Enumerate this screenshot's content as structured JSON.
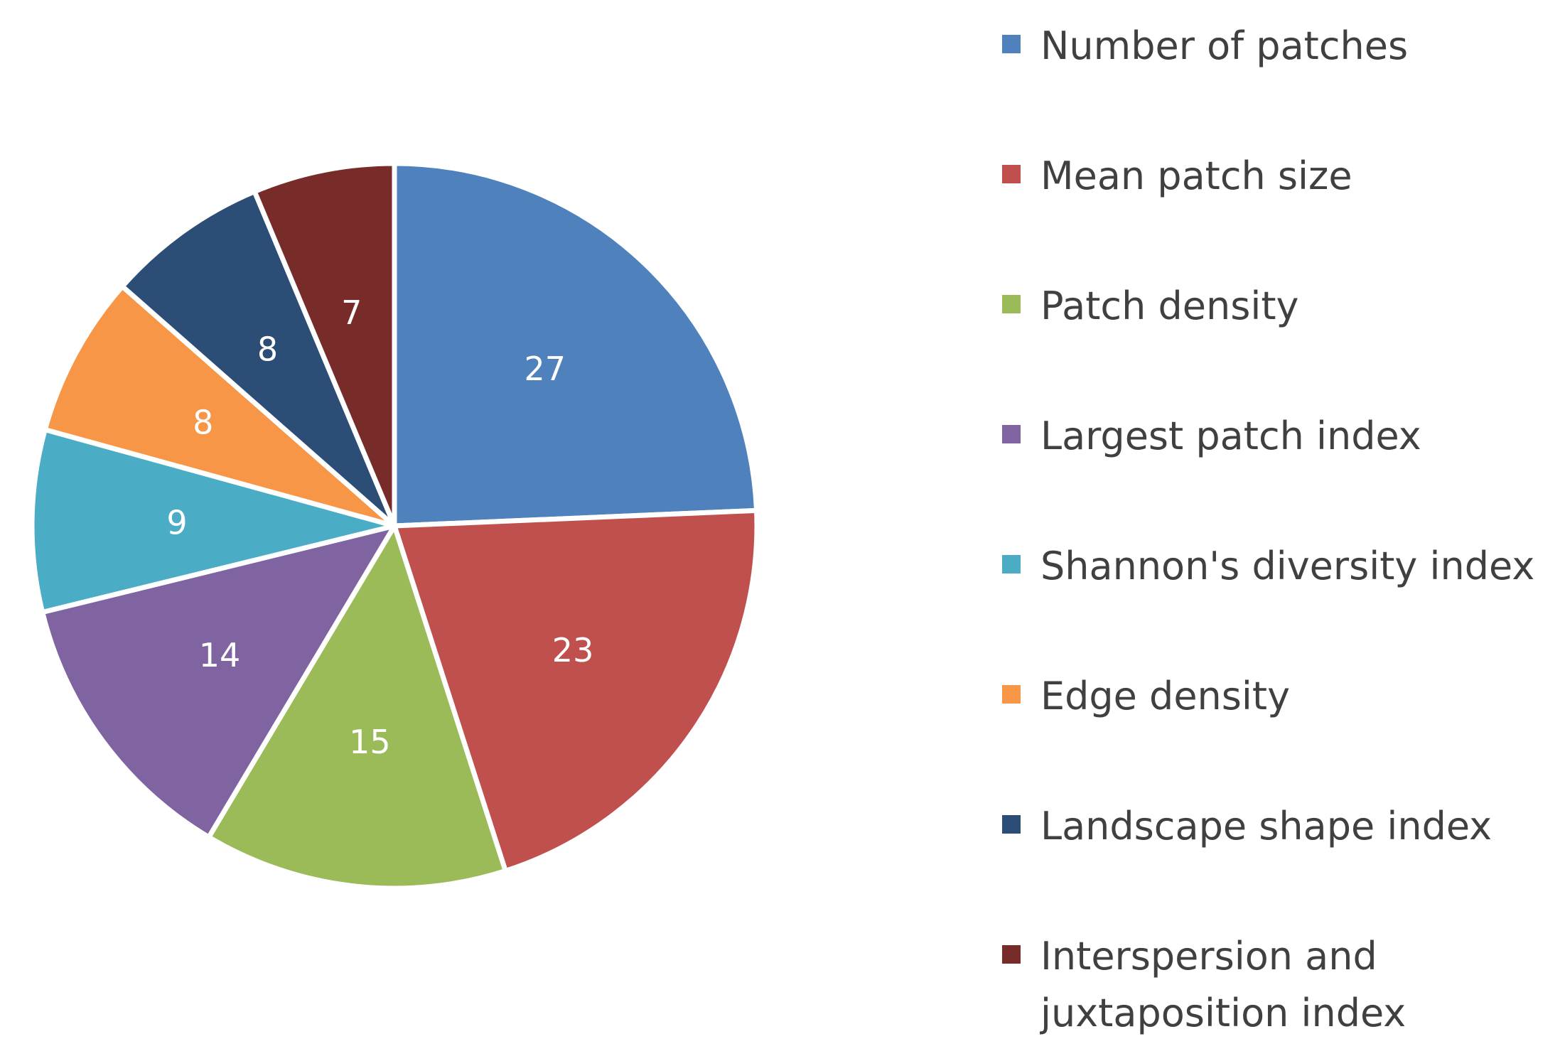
{
  "chart_data": {
    "type": "pie",
    "title": "",
    "legend_position": "right",
    "slices": [
      {
        "name": "Number of patches",
        "value": 27,
        "color": "#4F81BD"
      },
      {
        "name": "Mean patch size",
        "value": 23,
        "color": "#C0504D"
      },
      {
        "name": "Patch density",
        "value": 15,
        "color": "#9BBB59"
      },
      {
        "name": "Largest patch index",
        "value": 14,
        "color": "#8064A2"
      },
      {
        "name": "Shannon's diversity index",
        "value": 9,
        "color": "#4BACC6"
      },
      {
        "name": "Edge density",
        "value": 8,
        "color": "#F79646"
      },
      {
        "name": "Landscape shape index",
        "value": 8,
        "color": "#2C4D75"
      },
      {
        "name": "Interspersion and juxtaposition index",
        "value": 7,
        "color": "#772C2A"
      }
    ]
  }
}
